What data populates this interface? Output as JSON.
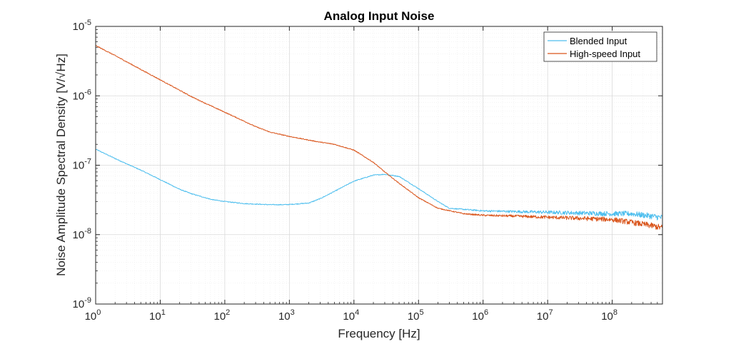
{
  "chart_data": {
    "type": "line",
    "title": "Analog Input Noise",
    "xlabel": "Frequency [Hz]",
    "ylabel": "Noise Amplitude Spectral Density [V/√Hz]",
    "xscale": "log",
    "yscale": "log",
    "xlim": [
      1,
      600000000
    ],
    "ylim": [
      1e-09,
      1e-05
    ],
    "grid": true,
    "legend_position": "top-right",
    "x_ticks": [
      {
        "base": "10",
        "exp": "0"
      },
      {
        "base": "10",
        "exp": "1"
      },
      {
        "base": "10",
        "exp": "2"
      },
      {
        "base": "10",
        "exp": "3"
      },
      {
        "base": "10",
        "exp": "4"
      },
      {
        "base": "10",
        "exp": "5"
      },
      {
        "base": "10",
        "exp": "6"
      },
      {
        "base": "10",
        "exp": "7"
      },
      {
        "base": "10",
        "exp": "8"
      }
    ],
    "y_ticks": [
      {
        "base": "10",
        "exp": "-9"
      },
      {
        "base": "10",
        "exp": "-8"
      },
      {
        "base": "10",
        "exp": "-7"
      },
      {
        "base": "10",
        "exp": "-6"
      },
      {
        "base": "10",
        "exp": "-5"
      }
    ],
    "series": [
      {
        "name": "Blended Input",
        "color": "#4DBEEE",
        "x": [
          1,
          2,
          3,
          5,
          10,
          20,
          30,
          50,
          63,
          100,
          200,
          500,
          800,
          1000,
          2000,
          3000,
          5000,
          10000,
          20000,
          30000,
          50000,
          100000,
          200000,
          300000,
          1000000,
          10000000,
          100000000,
          200000000,
          400000000,
          600000000
        ],
        "y": [
          1.7e-07,
          1.25e-07,
          1.05e-07,
          8.5e-08,
          6.2e-08,
          4.5e-08,
          3.9e-08,
          3.4e-08,
          3.2e-08,
          3e-08,
          2.8e-08,
          2.7e-08,
          2.7e-08,
          2.72e-08,
          2.85e-08,
          3.3e-08,
          4.2e-08,
          5.9e-08,
          7.2e-08,
          7.4e-08,
          6.9e-08,
          4.6e-08,
          3e-08,
          2.4e-08,
          2.2e-08,
          2.1e-08,
          2e-08,
          2e-08,
          1.85e-08,
          1.75e-08
        ]
      },
      {
        "name": "High-speed Input",
        "color": "#D95319",
        "x": [
          1,
          2,
          3,
          5,
          10,
          20,
          30,
          50,
          100,
          200,
          300,
          500,
          1000,
          2000,
          3000,
          5000,
          10000,
          20000,
          30000,
          50000,
          100000,
          200000,
          500000,
          1000000,
          3000000,
          10000000,
          30000000,
          100000000,
          200000000,
          400000000,
          600000000
        ],
        "y": [
          5.3e-06,
          3.8e-06,
          3.1e-06,
          2.4e-06,
          1.7e-06,
          1.2e-06,
          9.8e-07,
          7.8e-07,
          5.8e-07,
          4.3e-07,
          3.6e-07,
          3e-07,
          2.6e-07,
          2.3e-07,
          2.15e-07,
          2e-07,
          1.65e-07,
          1.1e-07,
          8e-08,
          5.5e-08,
          3.4e-08,
          2.4e-08,
          2e-08,
          1.9e-08,
          1.85e-08,
          1.78e-08,
          1.72e-08,
          1.65e-08,
          1.5e-08,
          1.35e-08,
          1.25e-08
        ]
      }
    ]
  }
}
